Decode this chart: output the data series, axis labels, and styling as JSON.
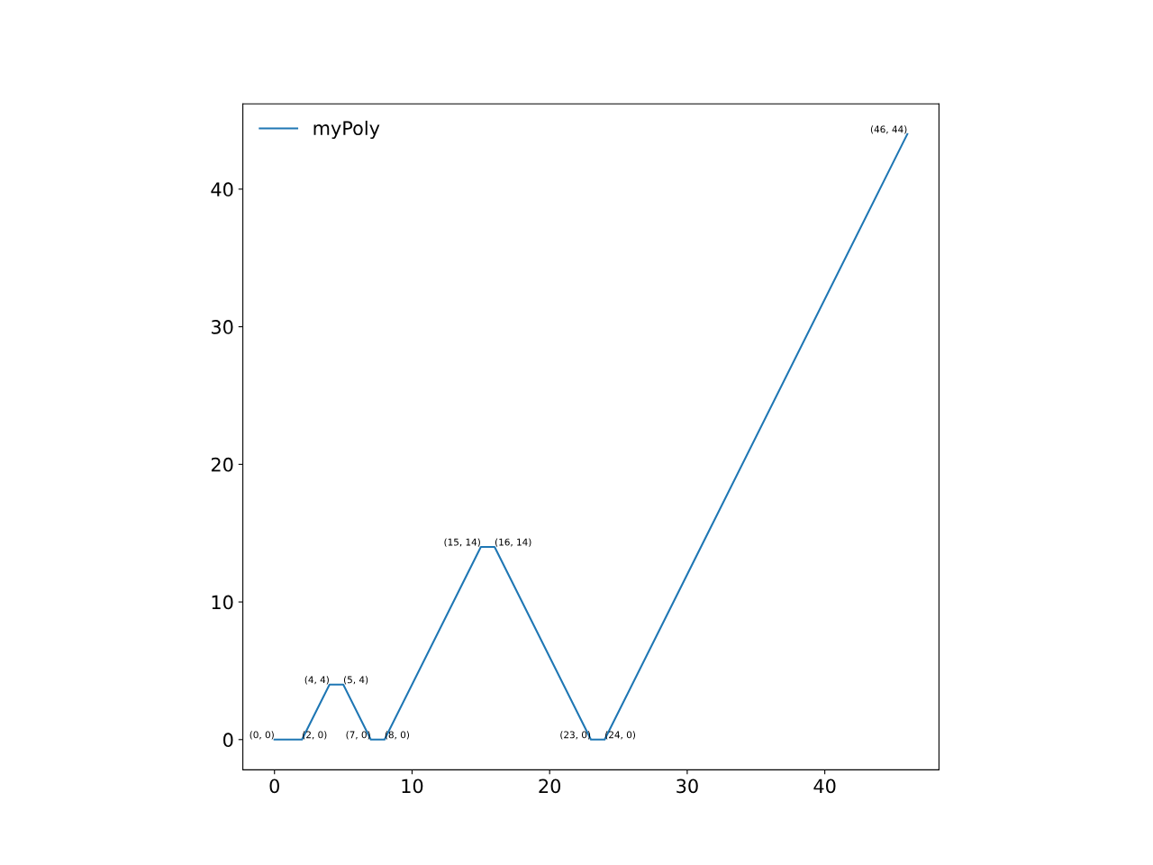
{
  "chart_data": {
    "type": "line",
    "x": [
      0,
      2,
      4,
      5,
      7,
      8,
      15,
      16,
      23,
      24,
      46
    ],
    "series": [
      {
        "name": "myPoly",
        "color": "#1f77b4",
        "values": [
          0,
          0,
          4,
          4,
          0,
          0,
          14,
          14,
          0,
          0,
          44
        ]
      }
    ],
    "xlim": [
      -2.3,
      48.3
    ],
    "ylim": [
      -2.2,
      46.2
    ],
    "xticks": [
      0,
      10,
      20,
      30,
      40
    ],
    "yticks": [
      0,
      10,
      20,
      30,
      40
    ],
    "grid": false,
    "legend": "top left",
    "marker": "none",
    "line_style": "solid",
    "annotations": [
      {
        "text": "(0, 0)",
        "x": 0,
        "y": 0
      },
      {
        "text": "(2, 0)",
        "x": 2,
        "y": 0
      },
      {
        "text": "(4, 4)",
        "x": 4,
        "y": 4
      },
      {
        "text": "(5, 4)",
        "x": 5,
        "y": 4
      },
      {
        "text": "(7, 0)",
        "x": 7,
        "y": 0
      },
      {
        "text": "(8, 0)",
        "x": 8,
        "y": 0
      },
      {
        "text": "(15, 14)",
        "x": 15,
        "y": 14
      },
      {
        "text": "(16, 14)",
        "x": 16,
        "y": 14
      },
      {
        "text": "(23, 0)",
        "x": 23,
        "y": 0
      },
      {
        "text": "(24, 0)",
        "x": 24,
        "y": 0
      },
      {
        "text": "(46, 44)",
        "x": 46,
        "y": 44
      }
    ]
  }
}
